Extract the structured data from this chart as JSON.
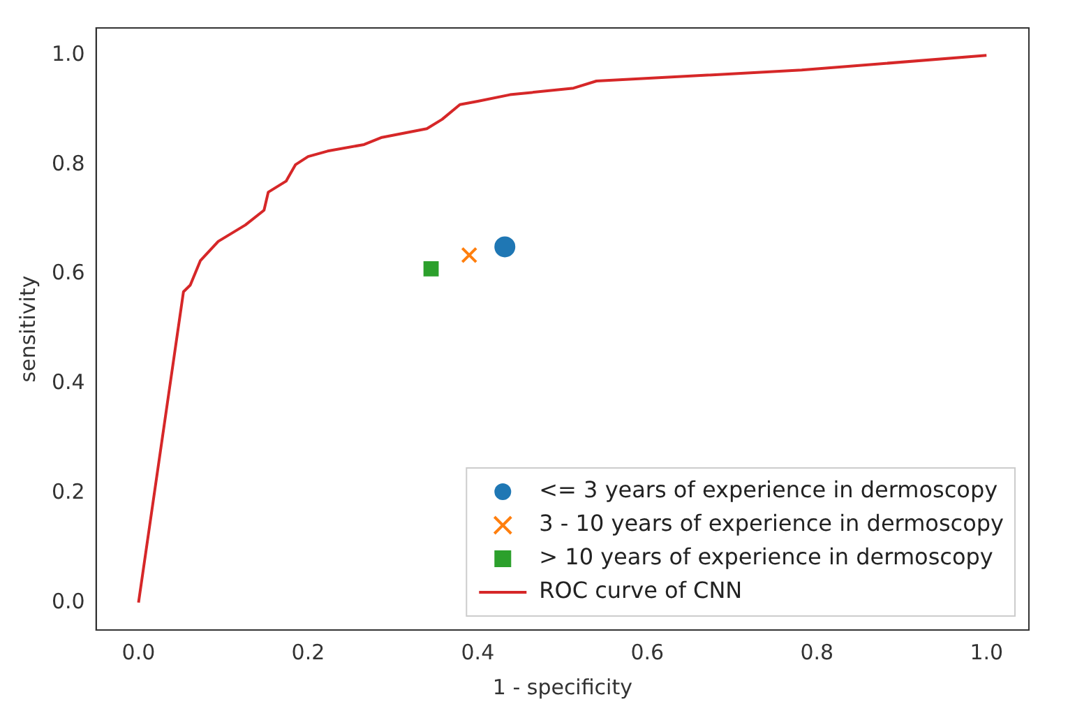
{
  "chart_data": {
    "type": "scatter",
    "xlabel": "1 - specificity",
    "ylabel": "sensitivity",
    "xlim": [
      -0.05,
      1.05
    ],
    "ylim": [
      -0.05,
      1.05
    ],
    "xticks": [
      {
        "value": 0,
        "label": "0.0"
      },
      0.2,
      0.4,
      0.6,
      0.8,
      {
        "value": 1,
        "label": "1.0"
      }
    ],
    "yticks": [
      {
        "value": 0,
        "label": "0.0"
      },
      0.2,
      0.4,
      0.6,
      0.8,
      {
        "value": 1,
        "label": "1.0"
      }
    ],
    "grid": false,
    "legend": "bottom right",
    "series": [
      {
        "name": "<= 3 years of experience in dermoscopy",
        "color": "#1f77b4",
        "marker": "circle",
        "x": [
          0.432
        ],
        "values": [
          0.65
        ]
      },
      {
        "name": "3 - 10 years of experience in dermoscopy",
        "color": "#ff7f0e",
        "marker": "cross",
        "x": [
          0.39
        ],
        "values": [
          0.635
        ]
      },
      {
        "name": "> 10 years of experience in dermoscopy",
        "color": "#2ca02c",
        "marker": "square",
        "x": [
          0.345
        ],
        "values": [
          0.61
        ]
      },
      {
        "name": "ROC curve of CNN",
        "type": "line",
        "color": "#d62728",
        "marker": "none",
        "line_style": "solid",
        "x": [
          0,
          0.053,
          0.061,
          0.073,
          0.094,
          0.126,
          0.148,
          0.153,
          0.174,
          0.185,
          0.2,
          0.223,
          0.266,
          0.287,
          0.34,
          0.358,
          0.379,
          0.4,
          0.438,
          0.513,
          0.54,
          0.782,
          1.0
        ],
        "values": [
          0,
          0.568,
          0.58,
          0.625,
          0.66,
          0.69,
          0.717,
          0.75,
          0.77,
          0.8,
          0.815,
          0.825,
          0.837,
          0.85,
          0.866,
          0.883,
          0.91,
          0.916,
          0.928,
          0.94,
          0.953,
          0.973,
          1.0
        ]
      }
    ]
  }
}
